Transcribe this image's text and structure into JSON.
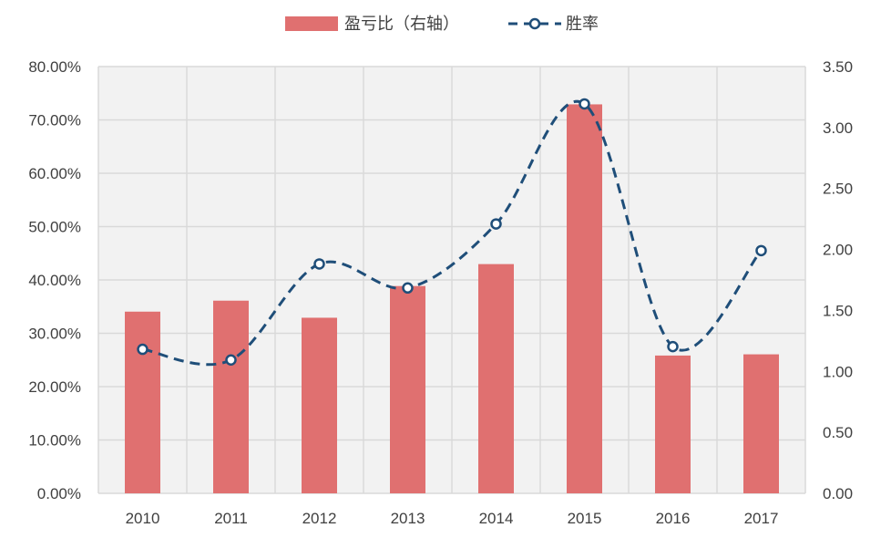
{
  "chart_data": {
    "type": "bar+line",
    "categories": [
      "2010",
      "2011",
      "2012",
      "2013",
      "2014",
      "2015",
      "2016",
      "2017"
    ],
    "series": [
      {
        "name": "盈亏比（右轴）",
        "type": "bar",
        "axis": "right",
        "values": [
          1.49,
          1.58,
          1.44,
          1.7,
          1.88,
          3.19,
          1.13,
          1.14
        ]
      },
      {
        "name": "胜率",
        "type": "line",
        "axis": "left",
        "style": "dashed-smooth-with-circle-markers",
        "values": [
          0.27,
          0.25,
          0.43,
          0.385,
          0.505,
          0.73,
          0.275,
          0.455
        ]
      }
    ],
    "y_left": {
      "min": 0,
      "max": 0.8,
      "ticks": [
        0,
        0.1,
        0.2,
        0.3,
        0.4,
        0.5,
        0.6,
        0.7,
        0.8
      ],
      "tick_labels": [
        "0.00%",
        "10.00%",
        "20.00%",
        "30.00%",
        "40.00%",
        "50.00%",
        "60.00%",
        "70.00%",
        "80.00%"
      ]
    },
    "y_right": {
      "min": 0,
      "max": 3.5,
      "ticks": [
        0,
        0.5,
        1.0,
        1.5,
        2.0,
        2.5,
        3.0,
        3.5
      ],
      "tick_labels": [
        "0.00",
        "0.50",
        "1.00",
        "1.50",
        "2.00",
        "2.50",
        "3.00",
        "3.50"
      ]
    },
    "grid": true,
    "legend": "top-center",
    "colors": {
      "bar": "#E07070",
      "line": "#1F4E79",
      "plot_bg": "#F2F2F2",
      "grid": "#D9D9D9"
    }
  }
}
